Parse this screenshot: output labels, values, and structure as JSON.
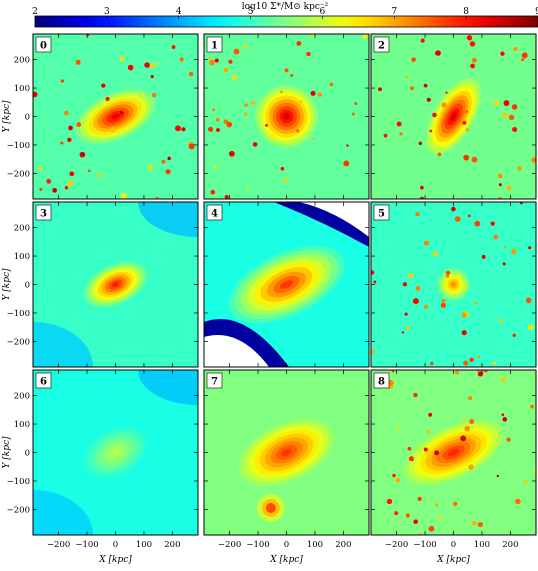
{
  "colorbar": {
    "label": "log10 Σ*/M⊙ kpc⁻²",
    "ticks": [
      2,
      3,
      4,
      5,
      6,
      7,
      8,
      9
    ],
    "range": [
      2,
      9
    ],
    "colormap": "jet"
  },
  "axes": {
    "xlabel": "X [kpc]",
    "ylabel": "Y [kpc]",
    "ticks": [
      "−200",
      "−100",
      "0",
      "100",
      "200"
    ],
    "tick_values": [
      -200,
      -100,
      0,
      100,
      200
    ],
    "range": [
      -290,
      290
    ]
  },
  "chart_data": {
    "type": "heatmap",
    "layout": "3x3 grid of stellar surface density maps",
    "panels": [
      {
        "id": "0",
        "peak": 8.3,
        "background": 5.2,
        "pa_deg": -25,
        "extent": [
          150,
          80
        ],
        "clumps": true
      },
      {
        "id": "1",
        "peak": 8.4,
        "background": 5.3,
        "pa_deg": -60,
        "extent": [
          110,
          110
        ],
        "clumps": true
      },
      {
        "id": "2",
        "peak": 8.4,
        "background": 5.4,
        "pa_deg": -60,
        "extent": [
          150,
          70
        ],
        "clumps": true
      },
      {
        "id": "3",
        "peak": 8.0,
        "background": 5.0,
        "pa_deg": -25,
        "extent": [
          120,
          70
        ],
        "clumps": false
      },
      {
        "id": "4",
        "peak": 7.8,
        "background": 4.8,
        "pa_deg": -25,
        "extent": [
          220,
          110
        ],
        "clumps": false
      },
      {
        "id": "5",
        "peak": 7.2,
        "background": 5.0,
        "pa_deg": 0,
        "extent": [
          60,
          60
        ],
        "clumps": true
      },
      {
        "id": "6",
        "peak": 5.9,
        "background": 4.8,
        "pa_deg": -30,
        "extent": [
          120,
          80
        ],
        "clumps": false
      },
      {
        "id": "7",
        "peak": 7.8,
        "background": 5.5,
        "pa_deg": -25,
        "extent": [
          180,
          100
        ],
        "clumps": false
      },
      {
        "id": "8",
        "peak": 7.9,
        "background": 5.5,
        "pa_deg": -25,
        "extent": [
          190,
          90
        ],
        "clumps": true
      }
    ]
  },
  "colors": {
    "frame": "#000000",
    "label_box": "#ffffff"
  }
}
